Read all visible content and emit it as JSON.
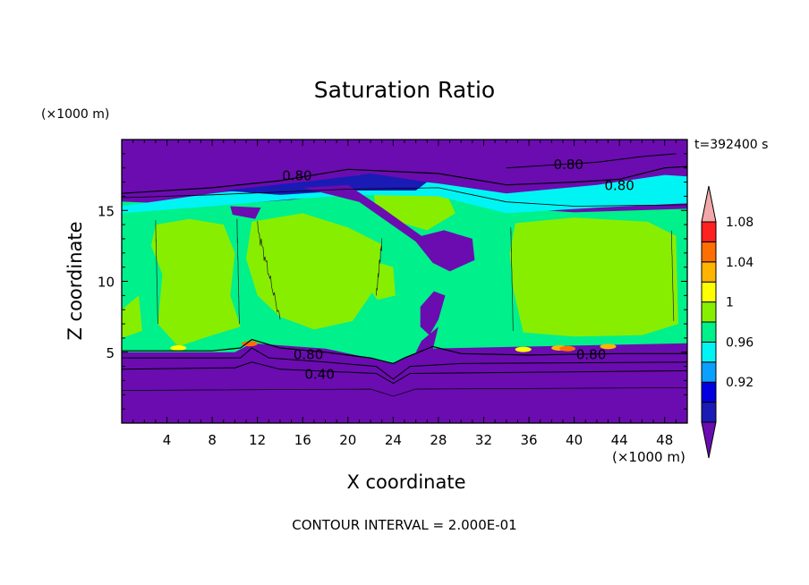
{
  "chart_data": {
    "type": "heatmap",
    "title": "Saturation Ratio",
    "xlabel": "X coordinate",
    "ylabel": "Z coordinate",
    "x_unit": "(×1000 m)",
    "z_unit": "(×1000 m)",
    "time_label": "t=392400 s",
    "footer": "CONTOUR INTERVAL = 2.000E-01",
    "xlim": [
      0,
      50
    ],
    "ylim": [
      0,
      20
    ],
    "x_ticks": [
      4,
      8,
      12,
      16,
      20,
      24,
      28,
      32,
      36,
      40,
      44,
      48
    ],
    "y_ticks": [
      5,
      10,
      15
    ],
    "colorbar": {
      "levels": [
        0.92,
        0.96,
        1,
        1.04,
        1.08
      ],
      "labels": [
        "0.92",
        "0.96",
        "1",
        "1.04",
        "1.08"
      ],
      "colors": [
        "#6a0cb0",
        "#1a1ab4",
        "#0000e0",
        "#0aa0ff",
        "#00f4f4",
        "#00f08c",
        "#88ee00",
        "#ffff00",
        "#ffb400",
        "#ff6e00",
        "#ff2020",
        "#f2a8a8"
      ]
    },
    "regions": {
      "dry_aloft_color": "#6a0cb0",
      "saturated_layer_color": "#00f08c",
      "supersaturated_color": "#88ee00",
      "layer_bottom_z": 5,
      "layer_top_z": 15.5
    },
    "contour_labels": [
      {
        "x": 15.5,
        "z": 17.5,
        "text": "0.80"
      },
      {
        "x": 39.5,
        "z": 18.3,
        "text": "0.80"
      },
      {
        "x": 44.0,
        "z": 16.8,
        "text": "0.80"
      },
      {
        "x": 16.5,
        "z": 4.9,
        "text": "0.80"
      },
      {
        "x": 41.5,
        "z": 4.9,
        "text": "0.80"
      },
      {
        "x": 17.5,
        "z": 3.5,
        "text": "0.40"
      }
    ]
  }
}
